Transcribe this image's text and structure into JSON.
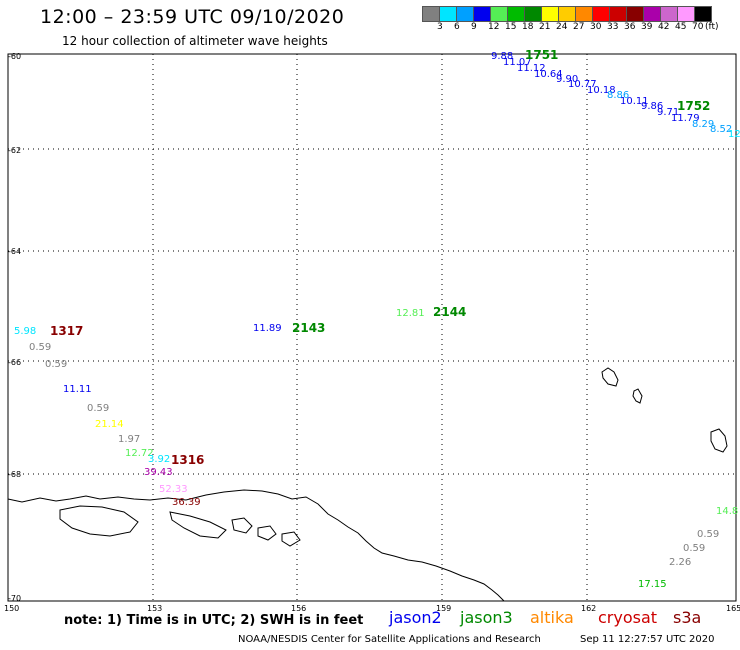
{
  "title": "12:00 – 23:59 UTC 09/10/2020",
  "subtitle": "12 hour collection of altimeter wave heights",
  "scale": {
    "unit": "(ft)",
    "bins": [
      {
        "label": "3",
        "color": "#808080"
      },
      {
        "label": "6",
        "color": "#00e5ff"
      },
      {
        "label": "9",
        "color": "#00a0ff"
      },
      {
        "label": "12",
        "color": "#0000ee"
      },
      {
        "label": "15",
        "color": "#55ee55"
      },
      {
        "label": "18",
        "color": "#00bb00"
      },
      {
        "label": "21",
        "color": "#008800"
      },
      {
        "label": "24",
        "color": "#ffff00"
      },
      {
        "label": "27",
        "color": "#ffcc00"
      },
      {
        "label": "30",
        "color": "#ff8800"
      },
      {
        "label": "33",
        "color": "#ff0000"
      },
      {
        "label": "36",
        "color": "#cc0000"
      },
      {
        "label": "39",
        "color": "#880000"
      },
      {
        "label": "42",
        "color": "#aa00aa"
      },
      {
        "label": "45",
        "color": "#cc66cc"
      },
      {
        "label": "70",
        "color": "#ff99ff"
      },
      {
        "label": "",
        "color": "#000000"
      }
    ]
  },
  "axes": {
    "lat_labels": [
      "-60",
      "-62",
      "-64",
      "-66",
      "-68",
      "-70"
    ],
    "lon_labels": [
      "150",
      "153",
      "156",
      "159",
      "162",
      "165"
    ]
  },
  "observations": [
    {
      "text": "9.88",
      "color": "#0000ee"
    },
    {
      "text": "11.07",
      "color": "#0000ee"
    },
    {
      "text": "11.12",
      "color": "#0000ee"
    },
    {
      "text": "10.64",
      "color": "#0000ee"
    },
    {
      "text": "9.90",
      "color": "#0000ee"
    },
    {
      "text": "10.77",
      "color": "#0000ee"
    },
    {
      "text": "10.18",
      "color": "#0000ee"
    },
    {
      "text": "8.86",
      "color": "#00a0ff"
    },
    {
      "text": "10.11",
      "color": "#0000ee"
    },
    {
      "text": "9.86",
      "color": "#0000ee"
    },
    {
      "text": "9.71",
      "color": "#0000ee"
    },
    {
      "text": "11.79",
      "color": "#0000ee"
    },
    {
      "text": "8.29",
      "color": "#00a0ff"
    },
    {
      "text": "8.52",
      "color": "#00a0ff"
    },
    {
      "text": "12",
      "color": "#00e5ff"
    },
    {
      "text": "5.98",
      "color": "#00e5ff"
    },
    {
      "text": "0.59",
      "color": "#808080"
    },
    {
      "text": "0.59",
      "color": "#808080"
    },
    {
      "text": "11.11",
      "color": "#0000ee"
    },
    {
      "text": "0.59",
      "color": "#808080"
    },
    {
      "text": "21.14",
      "color": "#ffff00"
    },
    {
      "text": "1.97",
      "color": "#808080"
    },
    {
      "text": "12.72",
      "color": "#55ee55"
    },
    {
      "text": "3.92",
      "color": "#00e5ff"
    },
    {
      "text": "39.43",
      "color": "#aa00aa"
    },
    {
      "text": "52.33",
      "color": "#ff99ff"
    },
    {
      "text": "36.39",
      "color": "#880000"
    },
    {
      "text": "11.89",
      "color": "#0000ee"
    },
    {
      "text": "12.81",
      "color": "#55ee55"
    },
    {
      "text": "14.8",
      "color": "#55ee55"
    },
    {
      "text": "0.59",
      "color": "#808080"
    },
    {
      "text": "0.59",
      "color": "#808080"
    },
    {
      "text": "2.26",
      "color": "#808080"
    },
    {
      "text": "17.15",
      "color": "#00bb00"
    }
  ],
  "pass_times": [
    {
      "text": "1751",
      "color": "#008800"
    },
    {
      "text": "1752",
      "color": "#008800"
    },
    {
      "text": "1317",
      "color": "#880000"
    },
    {
      "text": "1316",
      "color": "#880000"
    },
    {
      "text": "2143",
      "color": "#008800"
    },
    {
      "text": "2144",
      "color": "#008800"
    }
  ],
  "note": "note:  1) Time is in UTC;  2) SWH is in feet",
  "satellites": [
    {
      "name": "jason2",
      "color": "#0000ee"
    },
    {
      "name": "jason3",
      "color": "#008800"
    },
    {
      "name": "altika",
      "color": "#ff8800"
    },
    {
      "name": "cryosat",
      "color": "#cc0000"
    },
    {
      "name": "s3a",
      "color": "#880000"
    }
  ],
  "credit": "NOAA/NESDIS Center for Satellite Applications and Research",
  "timestamp": "Sep 11 12:27:57 UTC 2020"
}
